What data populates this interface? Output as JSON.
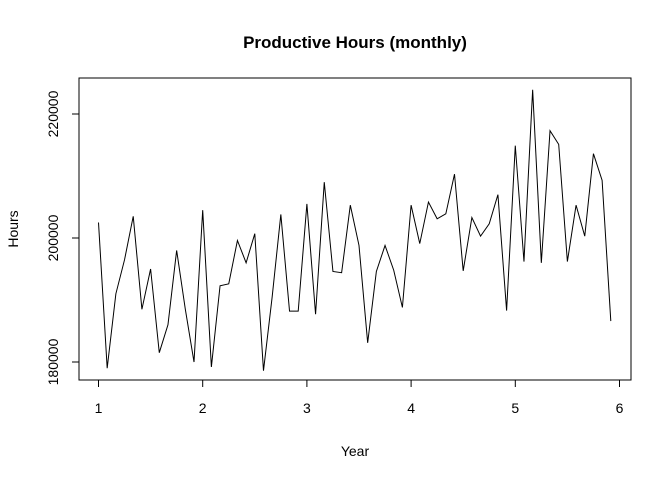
{
  "chart_data": {
    "type": "line",
    "title": "Productive Hours (monthly)",
    "xlabel": "Year",
    "ylabel": "Hours",
    "xlim": [
      1,
      6
    ],
    "ylim": [
      178500,
      225000
    ],
    "x_ticks": [
      1,
      2,
      3,
      4,
      5,
      6
    ],
    "x_tick_labels": [
      "1",
      "2",
      "3",
      "4",
      "5",
      "6"
    ],
    "y_ticks": [
      180000,
      200000,
      220000
    ],
    "y_tick_labels": [
      "180000",
      "200000",
      "220000"
    ],
    "grid": false,
    "legend": "none",
    "x_start": 1,
    "x_step": 0.08333,
    "series": [
      {
        "values": [
          202500,
          179000,
          191000,
          196500,
          203500,
          188500,
          195000,
          181500,
          186000,
          198000,
          188500,
          180000,
          204500,
          179200,
          192300,
          192600,
          199600,
          196000,
          200700,
          178600,
          190500,
          203800,
          188200,
          188200,
          205500,
          187700,
          209000,
          194600,
          194400,
          205300,
          198800,
          183100,
          194600,
          198800,
          194800,
          188800,
          205300,
          199100,
          205800,
          203100,
          203900,
          210300,
          194700,
          203300,
          200300,
          202300,
          207000,
          188300,
          214900,
          196200,
          223900,
          196000,
          217300,
          215100,
          196200,
          205300,
          200300,
          213600,
          209300,
          186600
        ]
      }
    ]
  }
}
